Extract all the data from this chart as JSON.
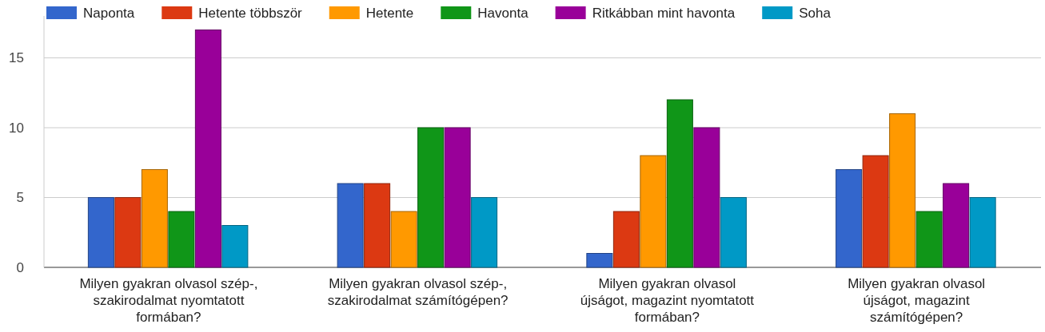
{
  "chart_data": {
    "type": "bar",
    "categories": [
      "Milyen gyakran olvasol szép-, szakirodalmat nyomtatott formában?",
      "Milyen gyakran olvasol szép-, szakirodalmat számítógépen?",
      "Milyen gyakran olvasol újságot, magazint nyomtatott formában?",
      "Milyen gyakran olvasol újságot, magazint számítógépen?"
    ],
    "series": [
      {
        "name": "Naponta",
        "color": "#3366cc",
        "values": [
          5,
          6,
          1,
          7
        ]
      },
      {
        "name": "Hetente többször",
        "color": "#dc3912",
        "values": [
          5,
          6,
          4,
          8
        ]
      },
      {
        "name": "Hetente",
        "color": "#ff9900",
        "values": [
          7,
          4,
          8,
          11
        ]
      },
      {
        "name": "Havonta",
        "color": "#109618",
        "values": [
          4,
          10,
          12,
          4
        ]
      },
      {
        "name": "Ritkábban mint havonta",
        "color": "#990099",
        "values": [
          17,
          10,
          10,
          6
        ]
      },
      {
        "name": "Soha",
        "color": "#0099c6",
        "values": [
          3,
          5,
          5,
          5
        ]
      }
    ],
    "ylim": [
      0,
      18
    ],
    "yticks": [
      0,
      5,
      10,
      15
    ],
    "grid": "y",
    "legend": "top"
  }
}
